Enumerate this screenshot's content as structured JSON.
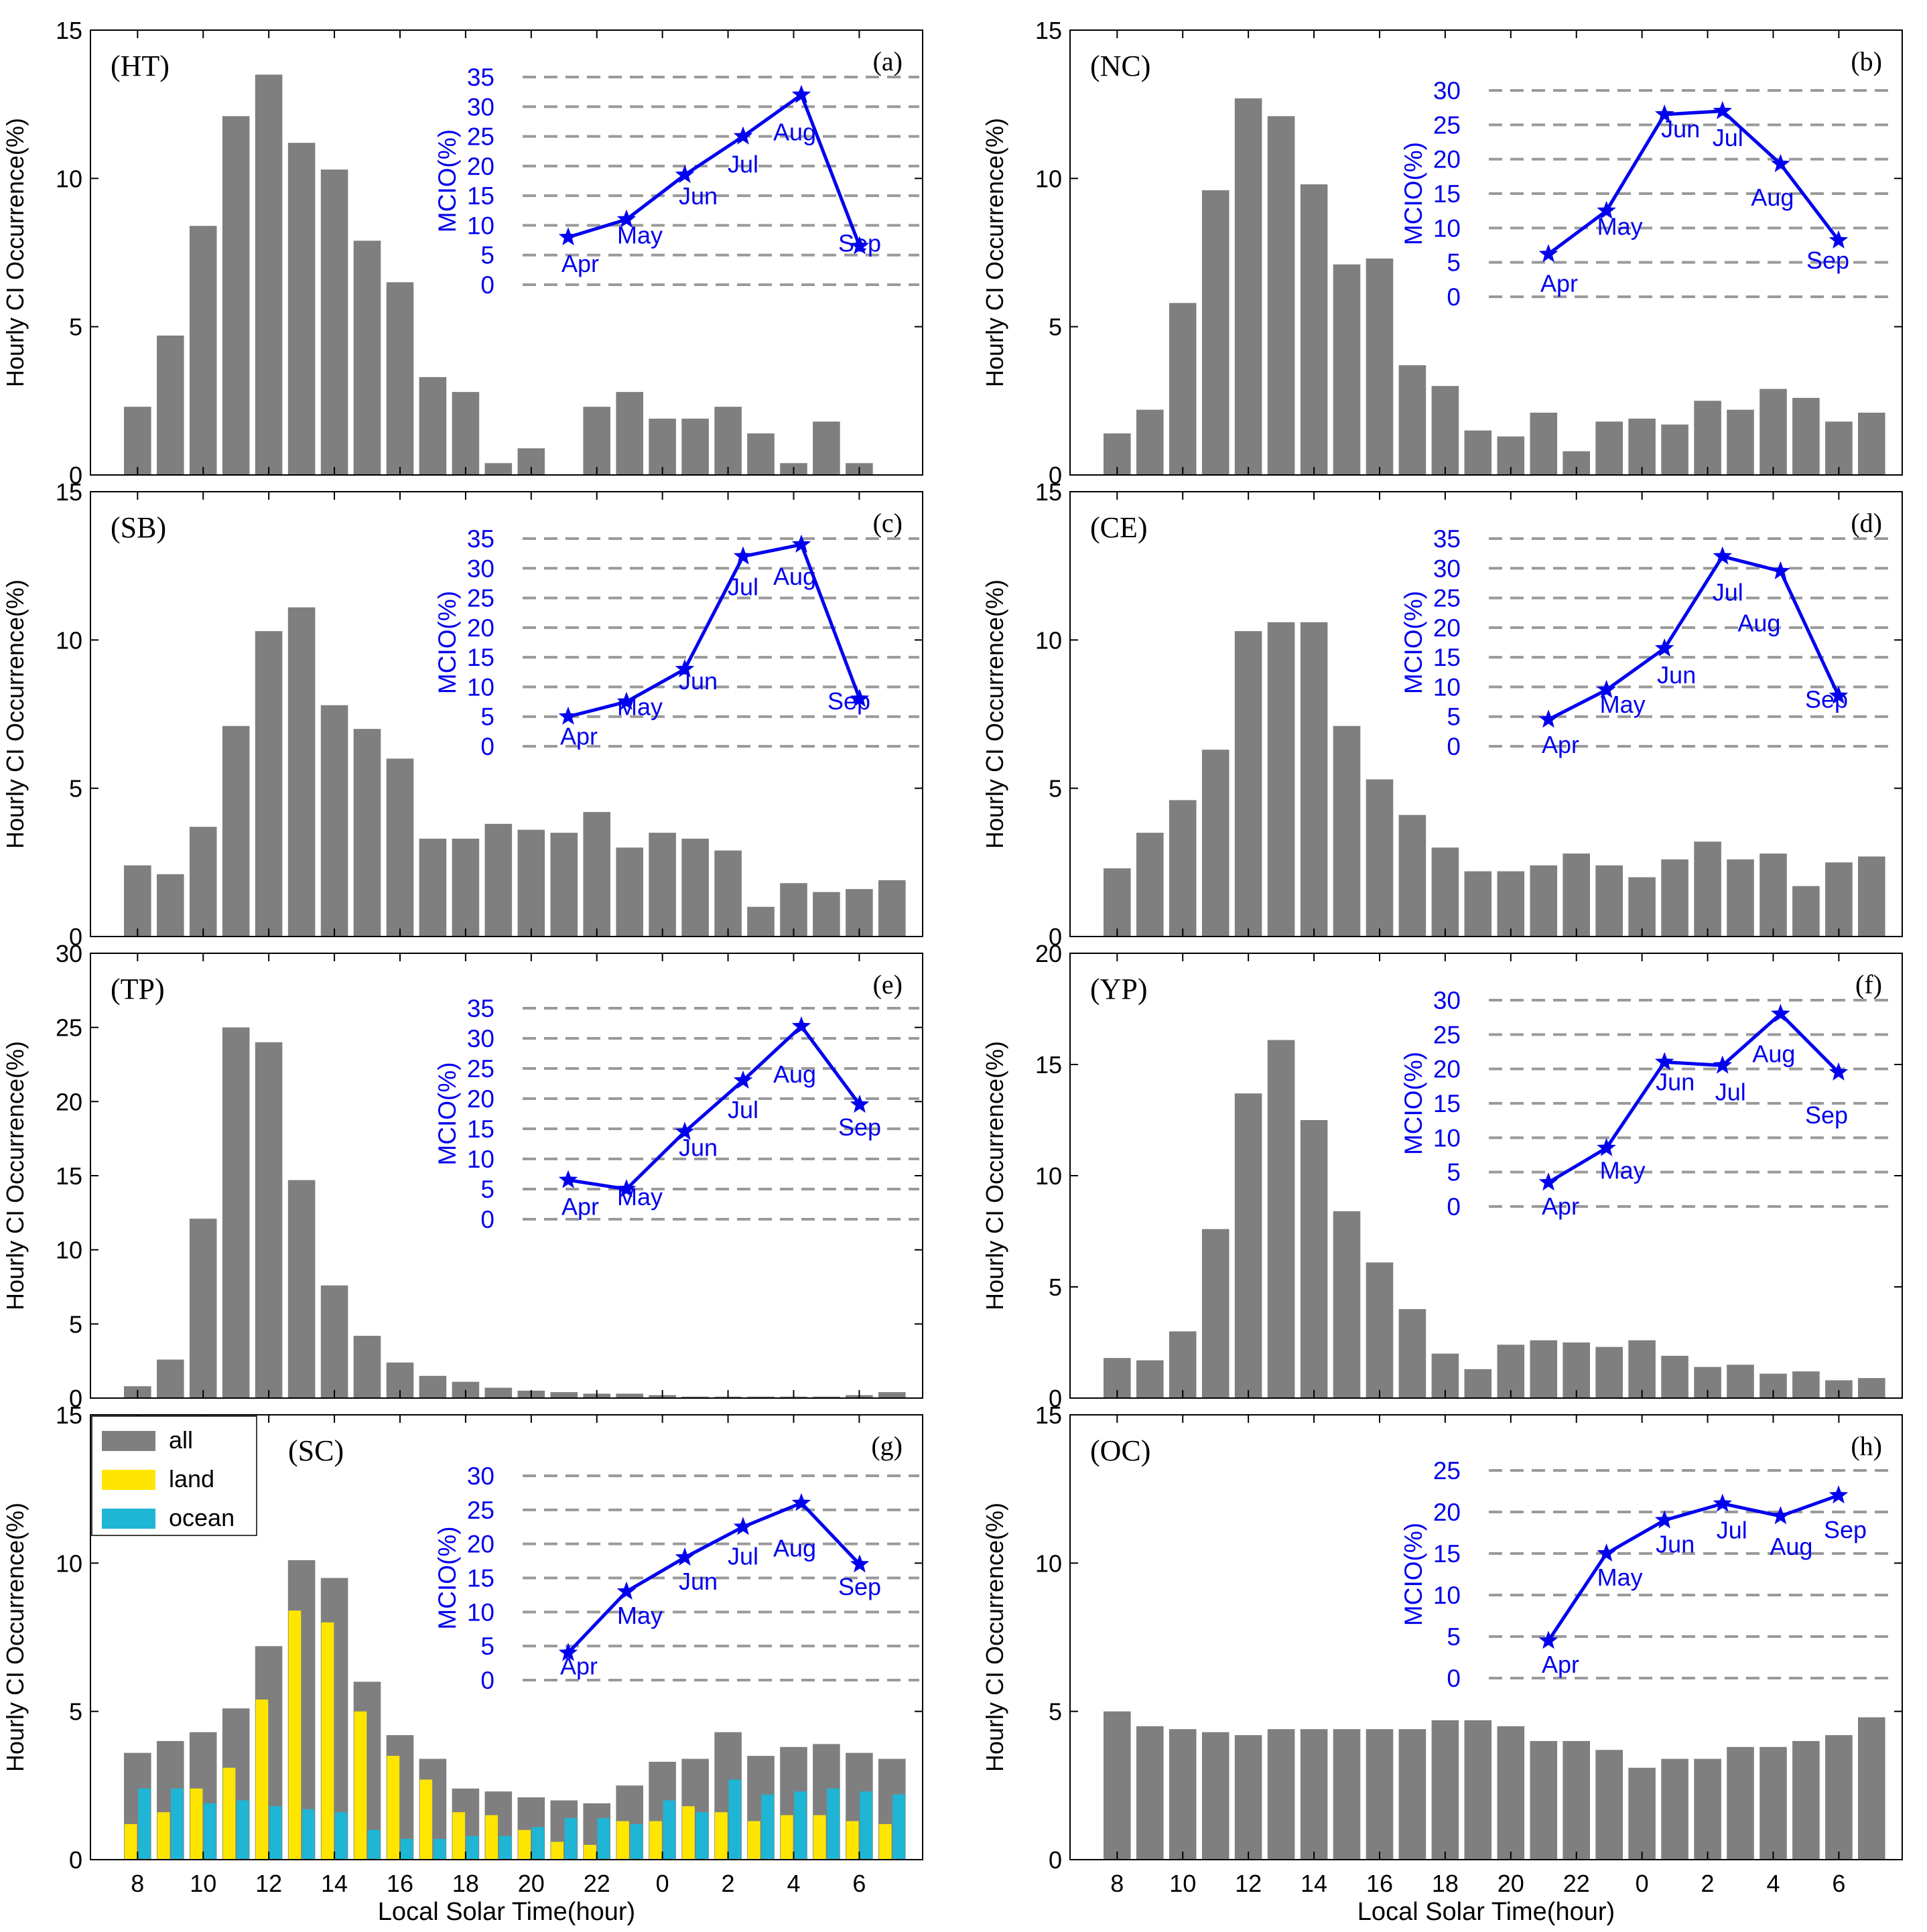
{
  "xlabel": "Local Solar Time(hour)",
  "ylabel": "Hourly CI Occurrence(%)",
  "inset_ylabel": "MCIO(%)",
  "x_tick_labels": [
    "8",
    "10",
    "12",
    "14",
    "16",
    "18",
    "20",
    "22",
    "0",
    "2",
    "4",
    "6"
  ],
  "hours": [
    "8",
    "9",
    "10",
    "11",
    "12",
    "13",
    "14",
    "15",
    "16",
    "17",
    "18",
    "19",
    "20",
    "21",
    "22",
    "23",
    "0",
    "1",
    "2",
    "3",
    "4",
    "5",
    "6",
    "7"
  ],
  "months": [
    "Apr",
    "May",
    "Jun",
    "Jul",
    "Aug",
    "Sep"
  ],
  "colors": {
    "bar": "#7f7f7f",
    "land": "#ffe600",
    "ocean": "#1fb5d4",
    "inset": "#0000ee",
    "grid": "#9a9a9a"
  },
  "legend": {
    "all": "all",
    "land": "land",
    "ocean": "ocean"
  },
  "chart_data": [
    {
      "type": "bar",
      "region": "(HT)",
      "panel": "(a)",
      "ylim": [
        0,
        15
      ],
      "yticks": [
        "0",
        "5",
        "10",
        "15"
      ],
      "values": [
        2.3,
        4.7,
        8.4,
        12.1,
        13.5,
        11.2,
        10.3,
        7.9,
        6.5,
        3.3,
        2.8,
        0.4,
        0.9,
        0,
        2.3,
        2.8,
        1.9,
        1.9,
        2.3,
        1.4,
        0.4,
        1.8,
        0.4,
        0
      ],
      "inset": {
        "ylim": [
          0,
          35
        ],
        "yticks": [
          "0",
          "5",
          "10",
          "15",
          "20",
          "25",
          "30",
          "35"
        ],
        "values": [
          8,
          11,
          18.5,
          25,
          32,
          6.5
        ]
      }
    },
    {
      "type": "bar",
      "region": "(NC)",
      "panel": "(b)",
      "ylim": [
        0,
        15
      ],
      "yticks": [
        "0",
        "5",
        "10",
        "15"
      ],
      "values": [
        1.4,
        2.2,
        5.8,
        9.6,
        12.7,
        12.1,
        9.8,
        7.1,
        7.3,
        3.7,
        3.0,
        1.5,
        1.3,
        2.1,
        0.8,
        1.8,
        1.9,
        1.7,
        2.5,
        2.2,
        2.9,
        2.6,
        1.8,
        2.1
      ],
      "inset": {
        "ylim": [
          0,
          30
        ],
        "yticks": [
          "0",
          "5",
          "10",
          "15",
          "20",
          "25",
          "30"
        ],
        "values": [
          6.2,
          12.5,
          26.5,
          27,
          19.3,
          8.2
        ]
      }
    },
    {
      "type": "bar",
      "region": "(SB)",
      "panel": "(c)",
      "ylim": [
        0,
        15
      ],
      "yticks": [
        "0",
        "5",
        "10",
        "15"
      ],
      "values": [
        2.4,
        2.1,
        3.7,
        7.1,
        10.3,
        11.1,
        7.8,
        7.0,
        6.0,
        3.3,
        3.3,
        3.8,
        3.6,
        3.5,
        4.2,
        3.0,
        3.5,
        3.3,
        2.9,
        1.0,
        1.8,
        1.5,
        1.6,
        1.9
      ],
      "inset": {
        "ylim": [
          0,
          35
        ],
        "yticks": [
          "0",
          "5",
          "10",
          "15",
          "20",
          "25",
          "30",
          "35"
        ],
        "values": [
          5,
          7.5,
          13,
          32,
          34,
          8
        ]
      }
    },
    {
      "type": "bar",
      "region": "(CE)",
      "panel": "(d)",
      "ylim": [
        0,
        15
      ],
      "yticks": [
        "0",
        "5",
        "10",
        "15"
      ],
      "values": [
        2.3,
        3.5,
        4.6,
        6.3,
        10.3,
        10.6,
        10.6,
        7.1,
        5.3,
        4.1,
        3.0,
        2.2,
        2.2,
        2.4,
        2.8,
        2.4,
        2.0,
        2.6,
        3.2,
        2.6,
        2.8,
        1.7,
        2.5,
        2.7
      ],
      "inset": {
        "ylim": [
          0,
          35
        ],
        "yticks": [
          "0",
          "5",
          "10",
          "15",
          "20",
          "25",
          "30",
          "35"
        ],
        "values": [
          4.5,
          9.5,
          16.5,
          32,
          29.5,
          8.5
        ]
      }
    },
    {
      "type": "bar",
      "region": "(TP)",
      "panel": "(e)",
      "ylim": [
        0,
        30
      ],
      "yticks": [
        "0",
        "5",
        "10",
        "15",
        "20",
        "25",
        "30"
      ],
      "values": [
        0.8,
        2.6,
        12.1,
        25.0,
        24.0,
        14.7,
        7.6,
        4.2,
        2.4,
        1.5,
        1.1,
        0.7,
        0.5,
        0.4,
        0.3,
        0.3,
        0.2,
        0.1,
        0.1,
        0.1,
        0.1,
        0.1,
        0.2,
        0.4
      ],
      "inset": {
        "ylim": [
          0,
          35
        ],
        "yticks": [
          "0",
          "5",
          "10",
          "15",
          "20",
          "25",
          "30",
          "35"
        ],
        "values": [
          6.5,
          5,
          14.5,
          23,
          32,
          19
        ]
      }
    },
    {
      "type": "bar",
      "region": "(YP)",
      "panel": "(f)",
      "ylim": [
        0,
        20
      ],
      "yticks": [
        "0",
        "5",
        "10",
        "15",
        "20"
      ],
      "values": [
        1.8,
        1.7,
        3.0,
        7.6,
        13.7,
        16.1,
        12.5,
        8.4,
        6.1,
        4.0,
        2.0,
        1.3,
        2.4,
        2.6,
        2.5,
        2.3,
        2.6,
        1.9,
        1.4,
        1.5,
        1.1,
        1.2,
        0.8,
        0.9
      ],
      "inset": {
        "ylim": [
          0,
          30
        ],
        "yticks": [
          "0",
          "5",
          "10",
          "15",
          "20",
          "25",
          "30"
        ],
        "values": [
          3.5,
          8.5,
          21,
          20.5,
          28,
          19.5
        ]
      }
    },
    {
      "type": "bar",
      "region": "(SC)",
      "panel": "(g)",
      "ylim": [
        0,
        15
      ],
      "yticks": [
        "0",
        "5",
        "10",
        "15"
      ],
      "values": [
        3.6,
        4.0,
        4.3,
        5.1,
        7.2,
        10.1,
        9.5,
        6.0,
        4.2,
        3.4,
        2.4,
        2.3,
        2.1,
        2.0,
        1.9,
        2.5,
        3.3,
        3.4,
        4.3,
        3.5,
        3.8,
        3.9,
        3.6,
        3.4
      ],
      "land": [
        1.2,
        1.6,
        2.4,
        3.1,
        5.4,
        8.4,
        8.0,
        5.0,
        3.5,
        2.7,
        1.6,
        1.5,
        1.0,
        0.6,
        0.5,
        1.3,
        1.3,
        1.8,
        1.6,
        1.3,
        1.5,
        1.5,
        1.3,
        1.2
      ],
      "ocean": [
        2.4,
        2.4,
        1.9,
        2.0,
        1.8,
        1.7,
        1.6,
        1.0,
        0.7,
        0.7,
        0.8,
        0.8,
        1.1,
        1.4,
        1.4,
        1.2,
        2.0,
        1.6,
        2.7,
        2.2,
        2.3,
        2.4,
        2.3,
        2.2
      ],
      "inset": {
        "ylim": [
          0,
          30
        ],
        "yticks": [
          "0",
          "5",
          "10",
          "15",
          "20",
          "25",
          "30"
        ],
        "values": [
          4,
          13,
          18,
          22.5,
          26,
          17
        ]
      }
    },
    {
      "type": "bar",
      "region": "(OC)",
      "panel": "(h)",
      "ylim": [
        0,
        15
      ],
      "yticks": [
        "0",
        "5",
        "10",
        "15"
      ],
      "values": [
        5.0,
        4.5,
        4.4,
        4.3,
        4.2,
        4.4,
        4.4,
        4.4,
        4.4,
        4.4,
        4.7,
        4.7,
        4.5,
        4.0,
        4.0,
        3.7,
        3.1,
        3.4,
        3.4,
        3.8,
        3.8,
        4.0,
        4.2,
        4.8
      ],
      "inset": {
        "ylim": [
          0,
          25
        ],
        "yticks": [
          "0",
          "5",
          "10",
          "15",
          "20",
          "25"
        ],
        "values": [
          4.5,
          15,
          19,
          21,
          19.5,
          22
        ]
      }
    }
  ]
}
